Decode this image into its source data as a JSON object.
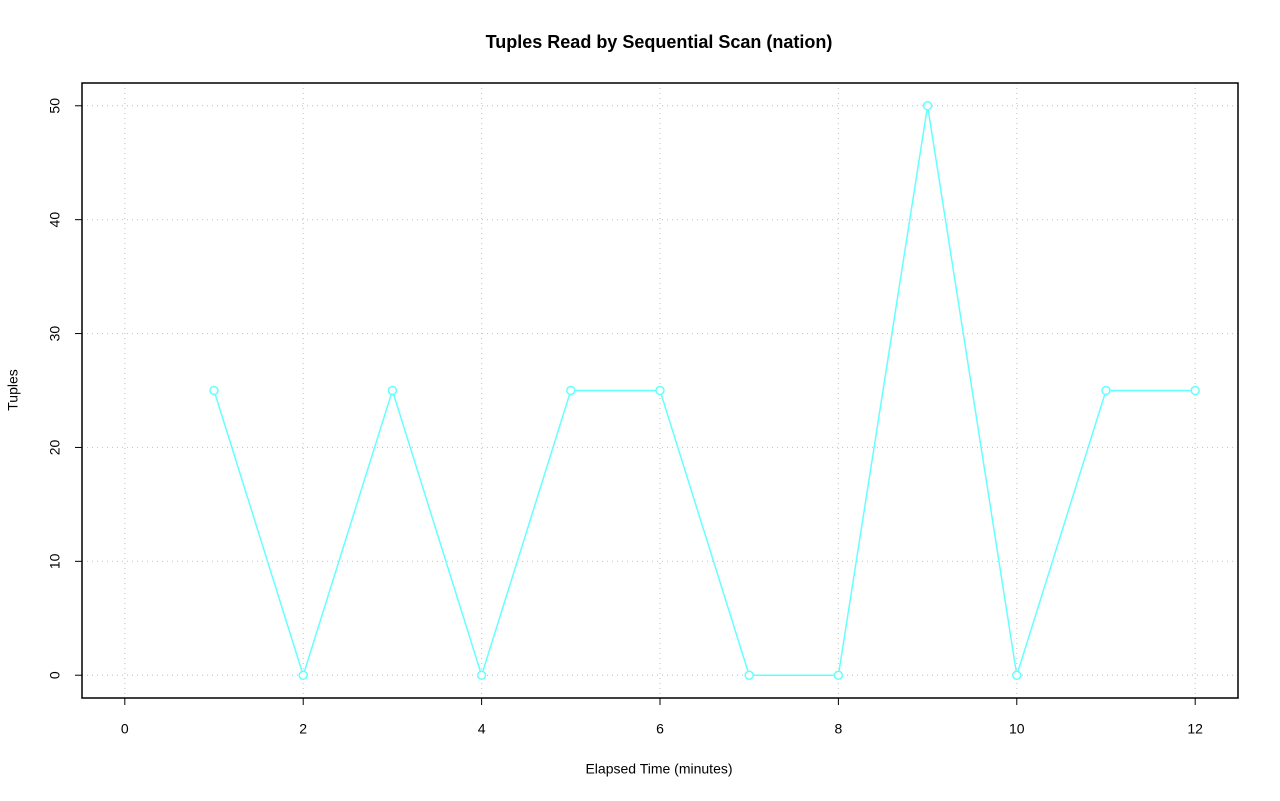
{
  "chart_data": {
    "type": "line",
    "title": "Tuples Read by Sequential Scan (nation)",
    "x_label": "Elapsed Time (minutes)",
    "y_label": "Tuples",
    "x": [
      1,
      2,
      3,
      4,
      5,
      6,
      7,
      8,
      9,
      10,
      11,
      12
    ],
    "series": [
      {
        "name": "nation",
        "color": "#66ffff",
        "values": [
          25,
          0,
          25,
          0,
          25,
          25,
          0,
          0,
          50,
          0,
          25,
          25
        ]
      }
    ],
    "xlim": [
      -0.48,
      12.48
    ],
    "xticks": [
      0,
      2,
      4,
      6,
      8,
      10,
      12
    ],
    "ylim": [
      -2,
      52
    ],
    "yticks": [
      0,
      10,
      20,
      30,
      40,
      50
    ],
    "grid": true,
    "markers": true
  }
}
